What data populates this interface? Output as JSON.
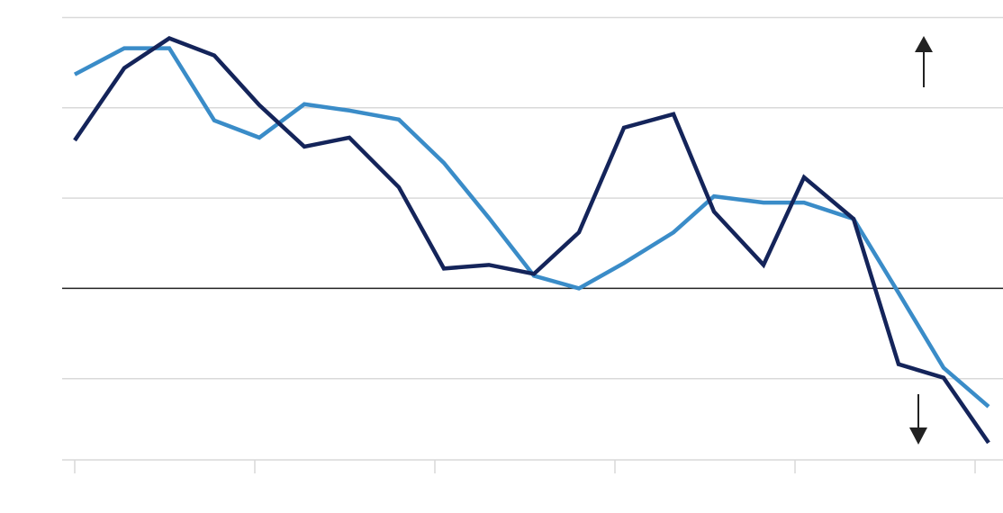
{
  "chart_data": {
    "type": "line",
    "x": [
      0,
      1.1,
      2.1,
      3.1,
      4.1,
      5.1,
      6.1,
      7.2,
      8.2,
      9.2,
      10.2,
      11.2,
      12.2,
      13.3,
      14.2,
      15.3,
      16.2,
      17.3,
      18.3,
      19.3,
      20.3
    ],
    "series": [
      {
        "color": "#14245a",
        "values": [
          1.64,
          2.44,
          2.77,
          2.58,
          2.03,
          1.57,
          1.67,
          1.12,
          0.22,
          0.26,
          0.16,
          0.62,
          1.78,
          1.93,
          0.85,
          0.26,
          1.23,
          0.77,
          -0.84,
          -0.99,
          -1.71
        ]
      },
      {
        "color": "#3a8cc8",
        "values": [
          2.37,
          2.66,
          2.66,
          1.86,
          1.67,
          2.04,
          1.97,
          1.87,
          1.39,
          0.78,
          0.14,
          0,
          0.28,
          0.62,
          1.02,
          0.95,
          0.95,
          0.77,
          -0.05,
          -0.88,
          -1.31
        ]
      }
    ],
    "xlim": [
      -0.28,
      20.62
    ],
    "xticks": [
      0,
      4,
      8,
      12,
      16,
      20
    ],
    "ylim": [
      -1.9,
      3
    ],
    "yticks": [
      -1,
      0,
      1,
      2,
      3
    ],
    "grid": true
  }
}
